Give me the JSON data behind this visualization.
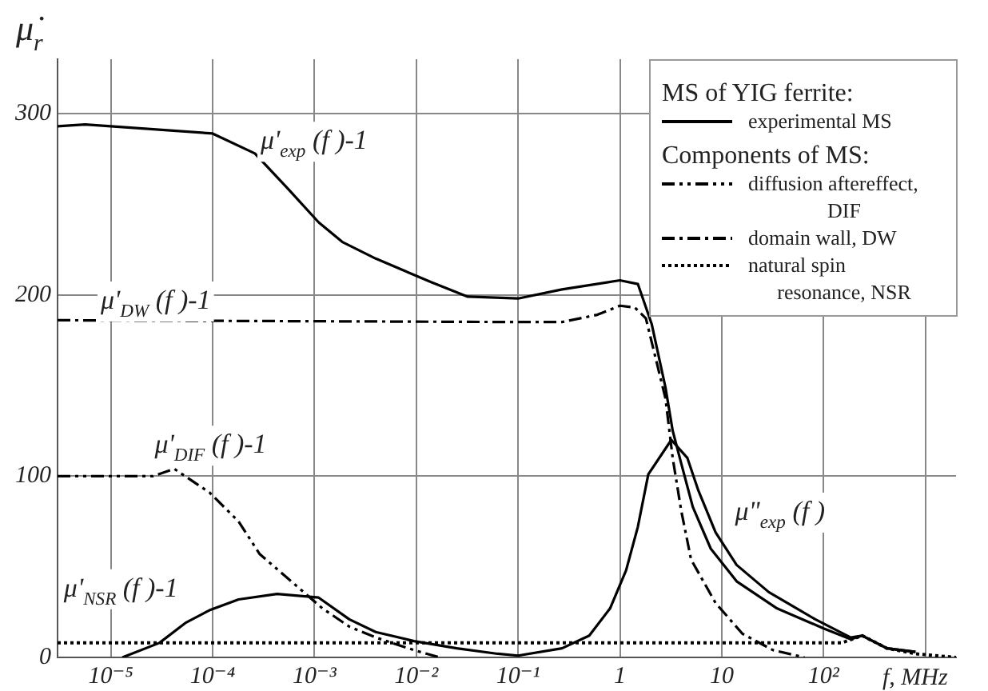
{
  "chart_data": {
    "type": "line",
    "ylabel": "μ̇$_{r}$",
    "xlabel": "f, MHz",
    "legend_title": "MS of YIG ferrite:",
    "log": "x",
    "grid": true,
    "legend": "top right",
    "marker": "none",
    "xlim": [
      3e-06,
      2000
    ],
    "xticks": [
      {
        "value": 1e-05,
        "label": "10⁻⁵"
      },
      {
        "value": 0.0001,
        "label": "10⁻⁴"
      },
      {
        "value": 0.001,
        "label": "10⁻³"
      },
      {
        "value": 0.01,
        "label": "10⁻²"
      },
      {
        "value": 0.1,
        "label": "10⁻¹"
      },
      1,
      10,
      {
        "value": 100,
        "label": "10²"
      },
      {
        "value": 1000,
        "label": null
      }
    ],
    "ylim": [
      0,
      330
    ],
    "yticks": [
      0,
      100,
      200,
      300
    ],
    "series": [
      {
        "name": "experimental MS",
        "color": "#000000",
        "line_style": "solid",
        "x": [
          3e-06,
          5.6e-06,
          0.0001,
          0.00026,
          0.00056,
          0.0011,
          0.0019,
          0.004,
          0.014,
          0.032,
          0.1,
          0.27,
          1,
          1.5,
          2.05,
          2.8,
          3.3,
          4,
          5.2,
          7.8,
          14,
          35,
          100,
          185,
          240,
          420,
          800
        ],
        "values": [
          293,
          294,
          289,
          278,
          258,
          240,
          229,
          220,
          207,
          199,
          198,
          203,
          208,
          206,
          184,
          149,
          125,
          107,
          83,
          60,
          42,
          27,
          16,
          10,
          12,
          5,
          3
        ]
      },
      {
        "color": "#000000",
        "line_style": "solid",
        "x": [
          1.3e-05,
          3e-05,
          5.4e-05,
          9.3e-05,
          0.00018,
          0.00043,
          0.0011,
          0.0022,
          0.004,
          0.0095,
          0.025,
          0.063,
          0.1,
          0.27,
          0.5,
          0.8,
          1.15,
          1.5,
          1.9,
          3.2,
          4.6,
          5.9,
          8.7,
          14,
          29,
          83,
          185,
          240,
          420,
          800
        ],
        "values": [
          0,
          8,
          19,
          26,
          32,
          35,
          33,
          21,
          14,
          9,
          5,
          2,
          1,
          5,
          12,
          27,
          48,
          72,
          101,
          120,
          110,
          92,
          69,
          51,
          36,
          21,
          11,
          12,
          5,
          3
        ]
      },
      {
        "name": "diffusion aftereffect, DIF",
        "color": "#000000",
        "line_style": "dashdotdot",
        "x": [
          3e-06,
          2.6e-05,
          4.2e-05,
          9.3e-05,
          0.00018,
          0.00029,
          0.00062,
          0.0012,
          0.0022,
          0.004,
          0.0095,
          0.017
        ],
        "values": [
          100,
          100,
          104,
          91,
          75,
          57,
          41,
          27,
          17,
          11,
          4,
          0
        ]
      },
      {
        "name": "domain wall, DW",
        "color": "#000000",
        "line_style": "dashdot",
        "x": [
          3e-06,
          0.1,
          0.27,
          0.6,
          1,
          1.4,
          1.8,
          2.8,
          3.3,
          4,
          5,
          8.7,
          16,
          32,
          65
        ],
        "values": [
          186,
          185,
          185,
          189,
          194,
          193,
          187,
          143,
          110,
          81,
          54,
          30,
          13,
          4,
          0
        ]
      },
      {
        "name": "natural spin resonance, NSR",
        "color": "#000000",
        "line_style": "dotted",
        "x": [
          3e-06,
          150,
          240,
          420,
          800,
          2000
        ],
        "values": [
          8,
          8,
          12,
          5,
          2,
          0
        ]
      }
    ],
    "annotations": [
      "μ'$_{exp}$ (f )-1",
      "μ'$_{DW}$ (f )-1",
      "μ'$_{DIF}$ (f )-1",
      "μ'$_{NSR}$ (f )-1",
      "μ\"$_{exp}$ (f )",
      "Components of MS:"
    ]
  }
}
